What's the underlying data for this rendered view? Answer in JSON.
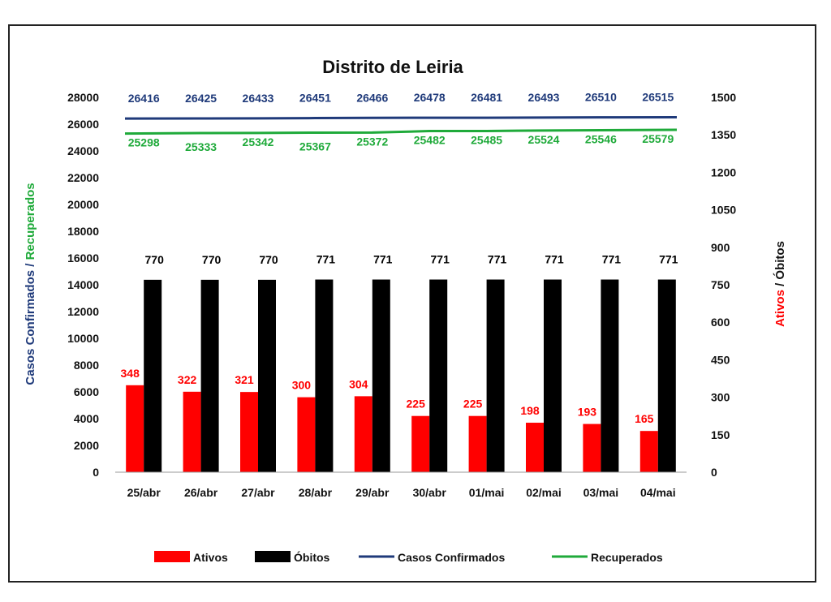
{
  "chart_data": {
    "type": "bar",
    "title": "Distrito de Leiria",
    "categories": [
      "25/abr",
      "26/abr",
      "27/abr",
      "28/abr",
      "29/abr",
      "30/abr",
      "01/mai",
      "02/mai",
      "03/mai",
      "04/mai"
    ],
    "left_axis": {
      "label_part1": "Casos Confirmados",
      "label_sep": " / ",
      "label_part2": "Recuperados",
      "ylim": [
        0,
        28000
      ],
      "ticks": [
        "0",
        "2000",
        "4000",
        "6000",
        "8000",
        "10000",
        "12000",
        "14000",
        "16000",
        "18000",
        "20000",
        "22000",
        "24000",
        "26000",
        "28000"
      ]
    },
    "right_axis": {
      "label_part1": "Ativos",
      "label_sep": " / ",
      "label_part2": "Óbitos",
      "ylim": [
        0,
        1500
      ],
      "ticks": [
        "0",
        "150",
        "300",
        "450",
        "600",
        "750",
        "900",
        "1050",
        "1200",
        "1350",
        "1500"
      ]
    },
    "series": [
      {
        "name": "Ativos",
        "kind": "bar",
        "axis": "right",
        "color": "#ff0000",
        "label_color": "#ff0000",
        "values": [
          348,
          322,
          321,
          300,
          304,
          225,
          225,
          198,
          193,
          165
        ]
      },
      {
        "name": "Óbitos",
        "kind": "bar",
        "axis": "right",
        "color": "#000000",
        "label_color": "#000000",
        "values": [
          770,
          770,
          770,
          771,
          771,
          771,
          771,
          771,
          771,
          771
        ]
      },
      {
        "name": "Casos Confirmados",
        "kind": "line",
        "axis": "left",
        "color": "#1f3a7a",
        "label_color": "#1f3a7a",
        "values": [
          26416,
          26425,
          26433,
          26451,
          26466,
          26478,
          26481,
          26493,
          26510,
          26515
        ]
      },
      {
        "name": "Recuperados",
        "kind": "line",
        "axis": "left",
        "color": "#1faa3a",
        "label_color": "#1faa3a",
        "values": [
          25298,
          25333,
          25342,
          25367,
          25372,
          25482,
          25485,
          25524,
          25546,
          25579
        ]
      }
    ],
    "legend_position": "bottom",
    "grid": false
  }
}
